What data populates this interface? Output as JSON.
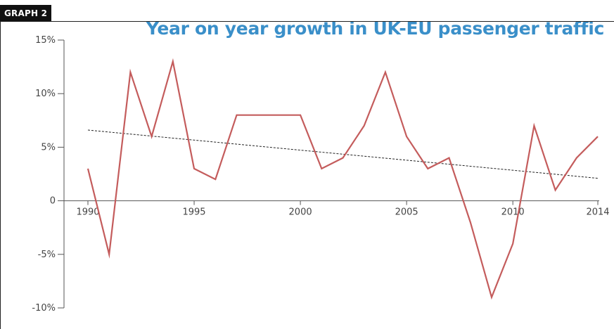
{
  "header": {
    "tag": "GRAPH 2",
    "title": "Year on year growth in UK-EU passenger traffic"
  },
  "colors": {
    "title": "#3a8fc9",
    "series": "#c45c5c",
    "trend": "#222222",
    "axis": "#555555"
  },
  "chart_data": {
    "type": "line",
    "title": "Year on year growth in UK-EU passenger traffic",
    "xlabel": "",
    "ylabel": "",
    "xlim": [
      1990,
      2014
    ],
    "ylim": [
      -10,
      15
    ],
    "x_ticks": [
      1990,
      1995,
      2000,
      2005,
      2010,
      2014
    ],
    "x_tick_labels": [
      "1990",
      "1995",
      "2000",
      "2005",
      "2010",
      "2014"
    ],
    "y_ticks": [
      15,
      10,
      5,
      0,
      -5,
      -10
    ],
    "y_tick_labels": [
      "15%",
      "10%",
      "5%",
      "0",
      "-5%",
      "-10%"
    ],
    "grid": false,
    "legend": "none",
    "series": [
      {
        "x": [
          1990,
          1991,
          1992,
          1993,
          1994,
          1995,
          1996,
          1997,
          1998,
          1999,
          2000,
          2001,
          2002,
          2003,
          2004,
          2005,
          2006,
          2007,
          2008,
          2009,
          2010,
          2011,
          2012,
          2013,
          2014
        ],
        "values": [
          3,
          -5,
          12,
          6,
          13,
          3,
          2,
          8,
          8,
          8,
          8,
          3,
          4,
          7,
          12,
          6,
          3,
          4,
          -2,
          -9,
          -4,
          7,
          1,
          4,
          6
        ],
        "style": "solid"
      },
      {
        "x": [
          1990,
          2014
        ],
        "values": [
          6.6,
          2.1
        ],
        "style": "dashed"
      }
    ]
  }
}
